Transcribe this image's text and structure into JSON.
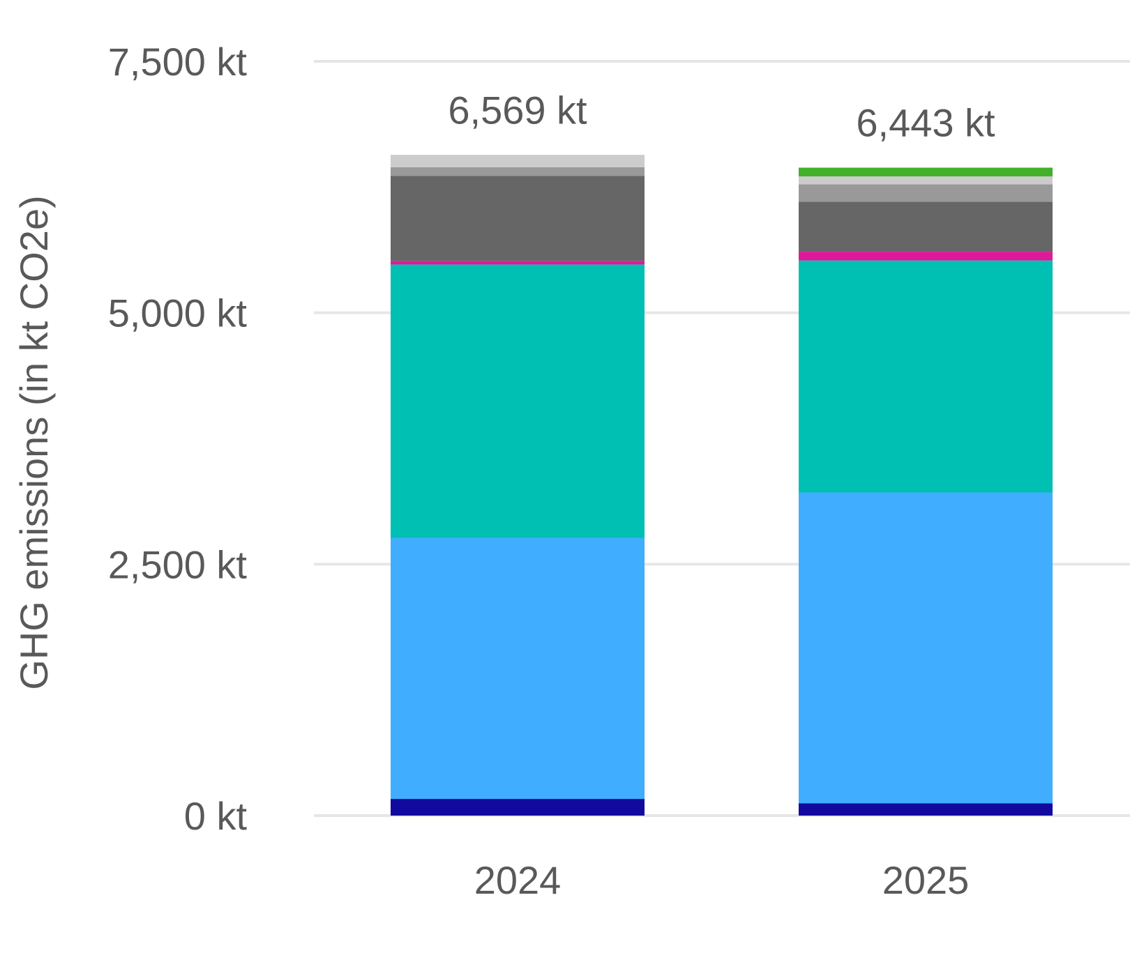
{
  "chart_data": {
    "type": "bar",
    "stacked": true,
    "title": "",
    "xlabel": "",
    "ylabel": "GHG emissions (in kt CO2e)",
    "ylim": [
      0,
      7500
    ],
    "grid": true,
    "legend": "none",
    "categories": [
      "2024",
      "2025"
    ],
    "y_ticks": [
      {
        "value": 0,
        "label": "0 kt"
      },
      {
        "value": 2500,
        "label": "2,500 kt"
      },
      {
        "value": 5000,
        "label": "5,000 kt"
      },
      {
        "value": 7500,
        "label": "7,500 kt"
      }
    ],
    "totals": [
      "6,569 kt",
      "6,443 kt"
    ],
    "total_values": [
      6569,
      6443
    ],
    "series": [
      {
        "color": "#120a9e",
        "values": [
          166,
          123
        ]
      },
      {
        "color": "#40adff",
        "values": [
          2596,
          3090
        ]
      },
      {
        "color": "#00bfb3",
        "values": [
          2718,
          2307
        ]
      },
      {
        "color": "#e0189a",
        "values": [
          36,
          87
        ]
      },
      {
        "color": "#666666",
        "values": [
          844,
          497
        ]
      },
      {
        "color": "#999999",
        "values": [
          87,
          173
        ]
      },
      {
        "color": "#cccccc",
        "values": [
          123,
          79
        ]
      },
      {
        "color": "#43b02a",
        "values": [
          0,
          87
        ]
      }
    ],
    "colors": {
      "gridline": "#e6e6e6",
      "text": "#595959"
    }
  }
}
